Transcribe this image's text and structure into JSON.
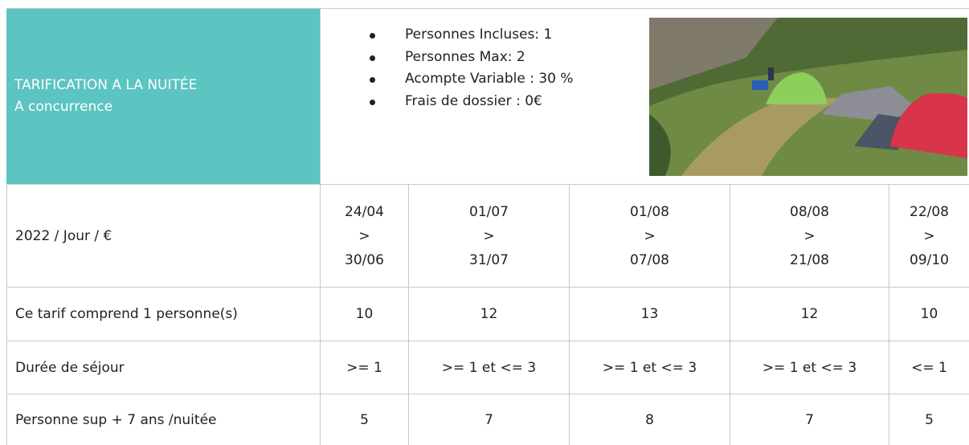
{
  "header": {
    "title": "TARIFICATION A LA NUITÉE",
    "subtitle": "A concurrence",
    "bullets": [
      "Personnes Incluses: 1",
      "Personnes Max: 2",
      "Acompte Variable : 30 %",
      "Frais de dossier : 0€"
    ]
  },
  "table": {
    "corner": "2022 / Jour / €",
    "periods": [
      {
        "start": "24/04",
        "sep": ">",
        "end": "30/06"
      },
      {
        "start": "01/07",
        "sep": ">",
        "end": "31/07"
      },
      {
        "start": "01/08",
        "sep": ">",
        "end": "07/08"
      },
      {
        "start": "08/08",
        "sep": ">",
        "end": "21/08"
      },
      {
        "start": "22/08",
        "sep": ">",
        "end": "09/10"
      }
    ],
    "rows": [
      {
        "label": "Ce tarif comprend 1 personne(s)",
        "values": [
          10,
          12,
          13,
          12,
          10
        ]
      },
      {
        "label": "Durée de séjour",
        "values": [
          ">= 1",
          ">= 1 et <= 3",
          ">= 1 et <= 3",
          ">= 1 et <= 3",
          "<= 1"
        ]
      },
      {
        "label": "Personne sup + 7 ans /nuitée",
        "values": [
          5,
          7,
          8,
          7,
          5
        ]
      }
    ]
  }
}
